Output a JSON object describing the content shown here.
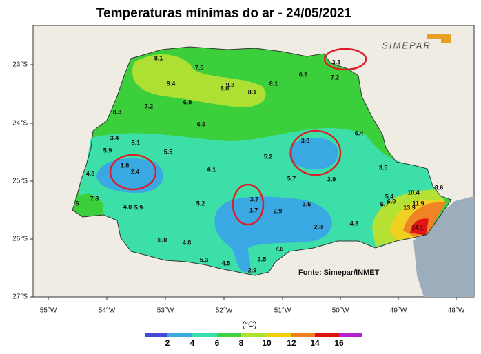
{
  "title": "Temperaturas mínimas do ar - 24/05/2021",
  "logo": "SIMEPAR",
  "source": "Fonte: Simepar/INMET",
  "lon_ticks": [
    "55°W",
    "54°W",
    "53°W",
    "52°W",
    "51°W",
    "50°W",
    "49°W",
    "48°W"
  ],
  "lat_ticks": [
    "23°S",
    "24°S",
    "25°S",
    "26°S",
    "27°S"
  ],
  "stations": [
    "8.1",
    "7.5",
    "9.4",
    "8.0",
    "9.3",
    "8.1",
    "8.1",
    "6.9",
    "7.2",
    "3.3",
    "7.2",
    "6.9",
    "8.3",
    "6.6",
    "6.4",
    "3.4",
    "5.1",
    "3.0",
    "5.9",
    "5.5",
    "5.2",
    "1.8",
    "2.4",
    "6.1",
    "3.5",
    "4.6",
    "5.7",
    "3.9",
    "10.4",
    "8.6",
    "7.8",
    "3.7",
    "5.4",
    "6.0",
    "6.7",
    "4.0",
    "5.9",
    "5.2",
    "3.6",
    "13.9",
    "11.9",
    "6",
    "1.7",
    "2.9",
    "4.8",
    "2.8",
    "14.1",
    "6.0",
    "4.8",
    "7.6",
    "5.3",
    "4.5",
    "3.5",
    "2.9"
  ],
  "colorbar": {
    "unit": "(°C)",
    "labels": [
      "2",
      "4",
      "6",
      "8",
      "10",
      "12",
      "14",
      "16"
    ]
  }
}
